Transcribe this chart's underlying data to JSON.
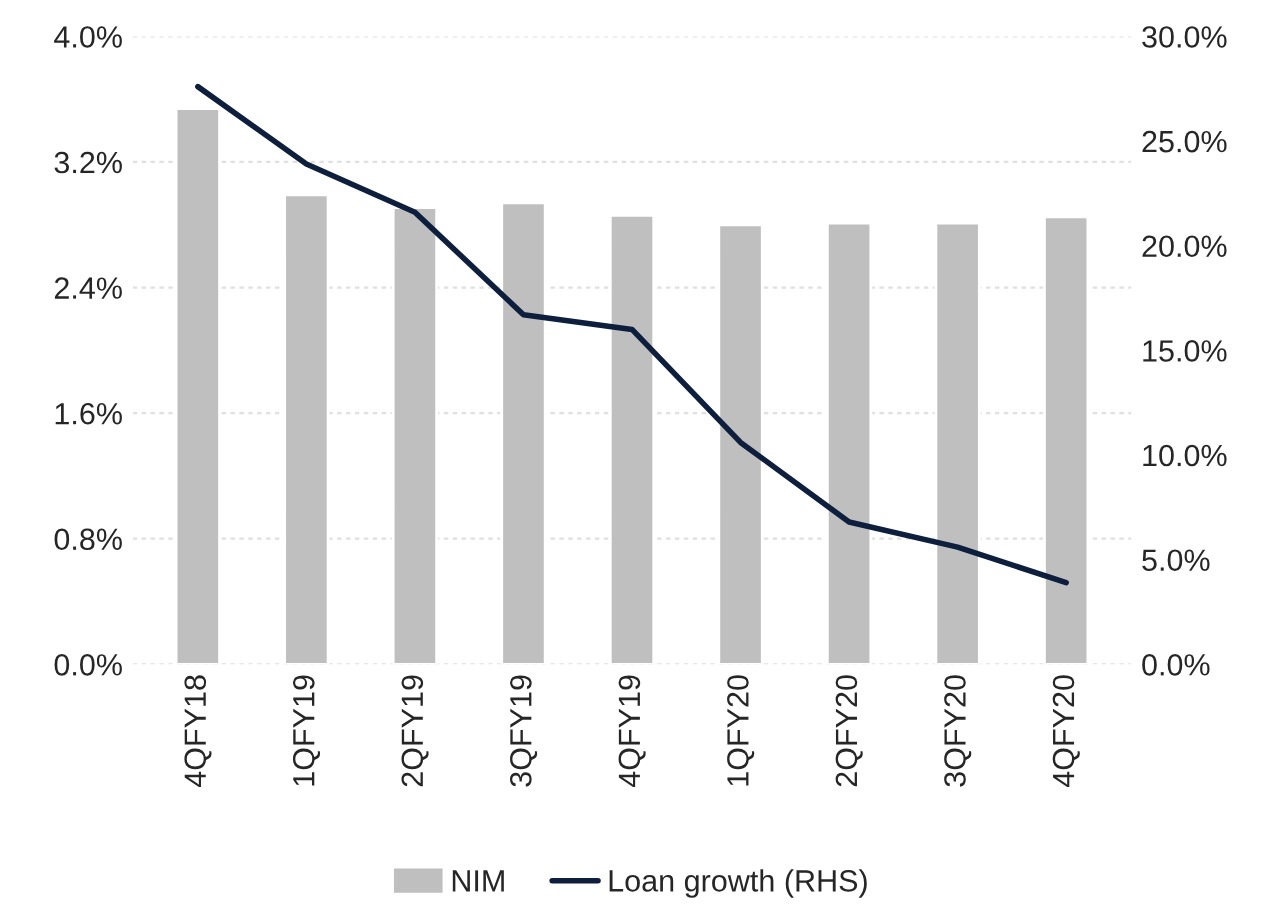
{
  "chart_data": {
    "type": "bar",
    "categories": [
      "4QFY18",
      "1QFY19",
      "2QFY19",
      "3QFY19",
      "4QFY19",
      "1QFY20",
      "2QFY20",
      "3QFY20",
      "4QFY20"
    ],
    "series": [
      {
        "name": "NIM",
        "color": "#bfbfbf",
        "values": [
          3.54,
          2.99,
          2.91,
          2.94,
          2.86,
          2.8,
          2.81,
          2.81,
          2.85
        ]
      },
      {
        "name": "Loan growth (RHS)",
        "type": "line",
        "axis": "y2",
        "color": "#0d1f3c",
        "values": [
          27.6,
          23.9,
          21.6,
          16.7,
          16.0,
          10.6,
          6.8,
          5.6,
          3.9
        ]
      }
    ],
    "ylim": [
      0,
      4
    ],
    "yticks": [
      {
        "value": 0,
        "label": "0.0%"
      },
      {
        "value": 0.8,
        "label": "0.8%"
      },
      {
        "value": 1.6,
        "label": "1.6%"
      },
      {
        "value": 2.4,
        "label": "2.4%"
      },
      {
        "value": 3.2,
        "label": "3.2%"
      },
      {
        "value": 4,
        "label": "4.0%"
      }
    ],
    "y2lim": [
      0,
      30
    ],
    "y2ticks": [
      {
        "value": 0,
        "label": "0.0%"
      },
      {
        "value": 5,
        "label": "5.0%"
      },
      {
        "value": 10,
        "label": "10.0%"
      },
      {
        "value": 15,
        "label": "15.0%"
      },
      {
        "value": 20,
        "label": "20.0%"
      },
      {
        "value": 25,
        "label": "25.0%"
      },
      {
        "value": 30,
        "label": "30.0%"
      }
    ],
    "grid": "y",
    "legend": "bottom"
  }
}
